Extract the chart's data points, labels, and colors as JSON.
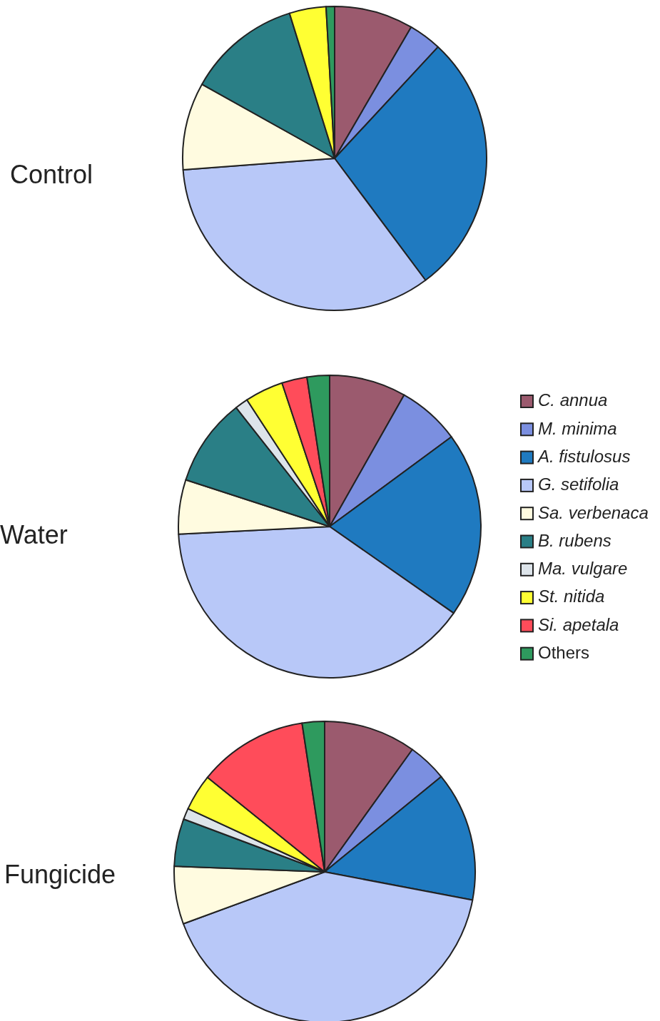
{
  "chart_data": [
    {
      "type": "pie",
      "title": "Control",
      "values": [
        8.4,
        3.5,
        27.9,
        34.0,
        9.3,
        12.1,
        0,
        3.9,
        0,
        0.9
      ],
      "colors": [
        "#9b5a6e",
        "#7b8fe0",
        "#1f7ac0",
        "#b8c8f8",
        "#fffbe0",
        "#2a7f86",
        "#dde4ea",
        "#ffff33",
        "#ff4c5a",
        "#2e9a5e"
      ],
      "legend": false
    },
    {
      "type": "pie",
      "title": "Water",
      "categories": [
        "C. annua",
        "M. minima",
        "A. fistulosus",
        "G. setifolia",
        "Sa. verbenaca",
        "B. rubens",
        "Ma. vulgare",
        "St. nitida",
        "Si. apetala",
        "Others"
      ],
      "values": [
        8.2,
        6.7,
        19.8,
        39.5,
        5.8,
        9.4,
        1.4,
        4.1,
        2.7,
        2.4
      ],
      "colors": [
        "#9b5a6e",
        "#7b8fe0",
        "#1f7ac0",
        "#b8c8f8",
        "#fffbe0",
        "#2a7f86",
        "#dde4ea",
        "#ffff33",
        "#ff4c5a",
        "#2e9a5e"
      ],
      "legend": "right"
    },
    {
      "type": "pie",
      "title": "Fungicide",
      "values": [
        9.9,
        4.2,
        13.9,
        41.4,
        6.2,
        5.1,
        1.2,
        3.9,
        11.8,
        2.4
      ],
      "colors": [
        "#9b5a6e",
        "#7b8fe0",
        "#1f7ac0",
        "#b8c8f8",
        "#fffbe0",
        "#2a7f86",
        "#dde4ea",
        "#ffff33",
        "#ff4c5a",
        "#2e9a5e"
      ],
      "legend": false
    }
  ]
}
